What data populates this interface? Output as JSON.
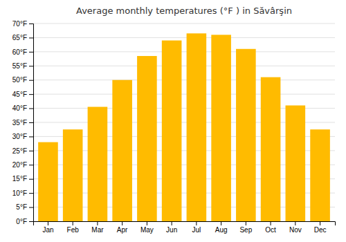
{
  "chart_data": {
    "type": "bar",
    "title": "Average monthly temperatures (°F ) in Săvârşin",
    "categories": [
      "Jan",
      "Feb",
      "Mar",
      "Apr",
      "May",
      "Jun",
      "Jul",
      "Aug",
      "Sep",
      "Oct",
      "Nov",
      "Dec"
    ],
    "values": [
      28,
      32.5,
      40.5,
      50,
      58.5,
      64,
      66.5,
      66,
      61,
      51,
      41,
      32.5
    ],
    "color": "#FFBB00",
    "ylim": [
      0,
      70
    ],
    "yticks": [
      {
        "value": 0,
        "label": "0°F"
      },
      {
        "value": 5,
        "label": "5°F"
      },
      {
        "value": 10,
        "label": "10°F"
      },
      {
        "value": 15,
        "label": "15°F"
      },
      {
        "value": 20,
        "label": "20°F"
      },
      {
        "value": 25,
        "label": "25°F"
      },
      {
        "value": 30,
        "label": "30°F"
      },
      {
        "value": 35,
        "label": "35°F"
      },
      {
        "value": 40,
        "label": "40°F"
      },
      {
        "value": 45,
        "label": "45°F"
      },
      {
        "value": 50,
        "label": "50°F"
      },
      {
        "value": 55,
        "label": "55°F"
      },
      {
        "value": 60,
        "label": "60°F"
      },
      {
        "value": 65,
        "label": "65°F"
      },
      {
        "value": 70,
        "label": "70°F"
      }
    ],
    "grid": true
  }
}
